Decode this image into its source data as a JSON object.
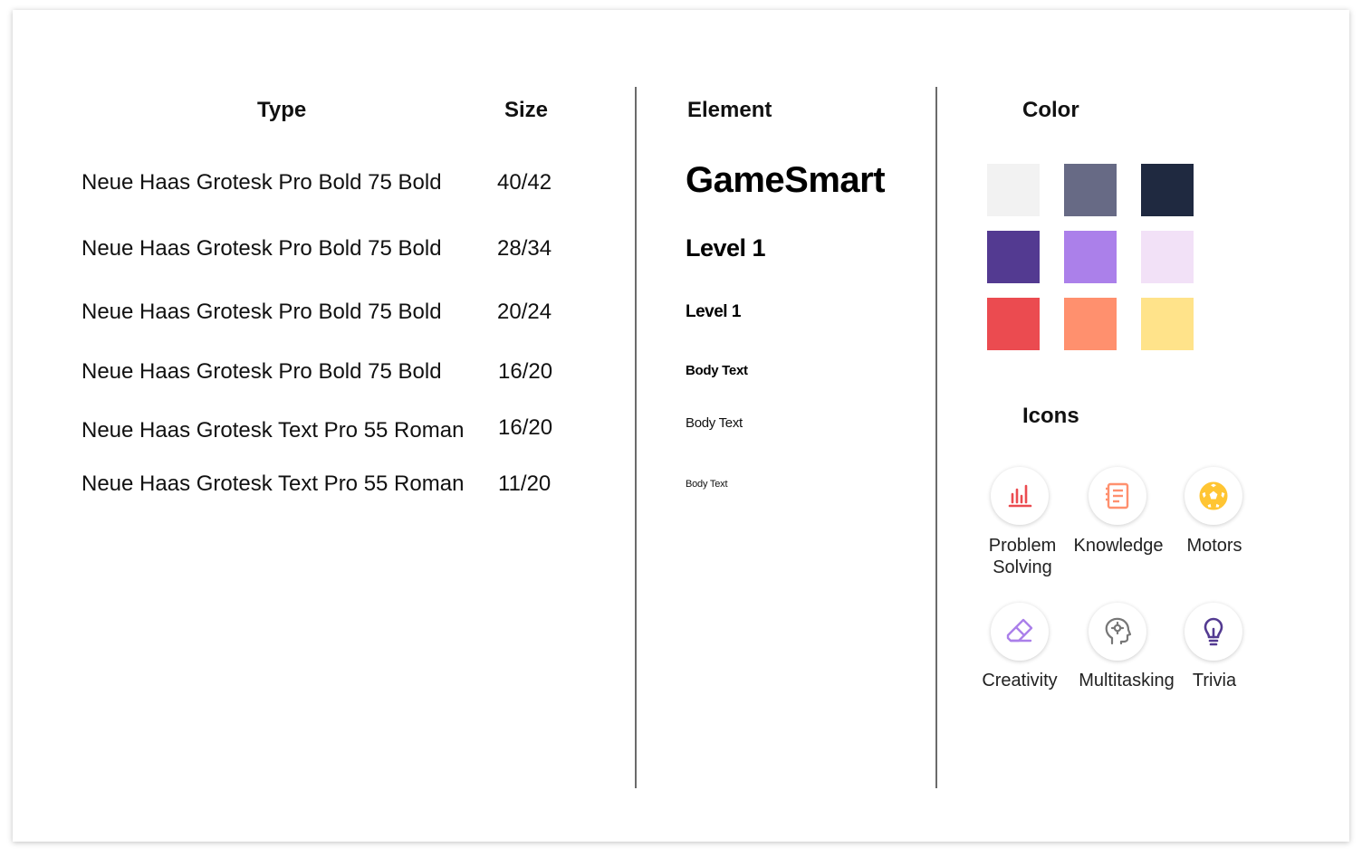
{
  "type_column": {
    "header": "Type",
    "size_header": "Size",
    "rows": [
      {
        "name": "Neue Haas Grotesk Pro Bold 75 Bold",
        "size": "40/42"
      },
      {
        "name": "Neue Haas Grotesk Pro Bold 75 Bold",
        "size": "28/34"
      },
      {
        "name": "Neue Haas Grotesk Pro Bold 75 Bold",
        "size": "20/24"
      },
      {
        "name": "Neue Haas Grotesk Pro Bold 75 Bold",
        "size": "16/20"
      },
      {
        "name": "Neue Haas Grotesk Text Pro 55 Roman",
        "size": "16/20"
      },
      {
        "name": "Neue Haas Grotesk Text Pro 55 Roman",
        "size": "11/20"
      }
    ]
  },
  "element_column": {
    "header": "Element",
    "items": [
      "GameSmart",
      "Level 1",
      "Level 1",
      "Body Text",
      "Body Text",
      "Body Text"
    ]
  },
  "color_column": {
    "header": "Color",
    "swatches": [
      "#f2f2f2",
      "#676a85",
      "#1f2940",
      "#533a91",
      "#ab80ea",
      "#f2e1f7",
      "#eb4b50",
      "#ff906e",
      "#ffe38a"
    ]
  },
  "icons_section": {
    "header": "Icons",
    "items": [
      {
        "label": "Problem Solving",
        "icon": "bar-chart-icon",
        "color": "#eb4b50"
      },
      {
        "label": "Knowledge",
        "icon": "notebook-icon",
        "color": "#ff906e"
      },
      {
        "label": "Motors",
        "icon": "soccer-ball-icon",
        "color": "#ffc533"
      },
      {
        "label": "Creativity",
        "icon": "eraser-icon",
        "color": "#ab80ea"
      },
      {
        "label": "Multitasking",
        "icon": "head-gear-icon",
        "color": "#777777"
      },
      {
        "label": "Trivia",
        "icon": "lightbulb-icon",
        "color": "#533a91"
      }
    ]
  }
}
